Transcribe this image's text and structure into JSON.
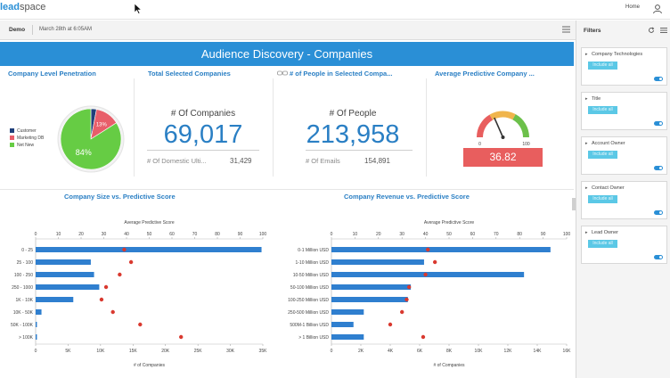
{
  "app": {
    "logo_prefix": "lead",
    "logo_suffix": "space",
    "home": "Home"
  },
  "dashboard": {
    "name": "Demo",
    "date": "March 28th at 6:05AM",
    "title": "Audience Discovery - Companies"
  },
  "kpis": {
    "penetration": {
      "title": "Company Level Penetration",
      "legend": [
        {
          "label": "Customer",
          "color": "#1f3f7a"
        },
        {
          "label": "Marketing DB",
          "color": "#e85e6a"
        },
        {
          "label": "Net New",
          "color": "#66cc44"
        }
      ],
      "slices": [
        {
          "label": "Customer",
          "value": 3,
          "color": "#1f3f7a",
          "text": ""
        },
        {
          "label": "Marketing DB",
          "value": 13,
          "color": "#e85e6a",
          "text": "13%"
        },
        {
          "label": "Net New",
          "value": 84,
          "color": "#66cc44",
          "text": "84%"
        }
      ]
    },
    "companies": {
      "title": "Total Selected Companies",
      "label": "# Of Companies",
      "value": "69,017",
      "sub_label": "# Of Domestic Ulti...",
      "sub_value": "31,429"
    },
    "people": {
      "title": "# of People in Selected Compa...",
      "label": "# Of People",
      "value": "213,958",
      "sub_label": "# Of Emails",
      "sub_value": "154,891"
    },
    "score": {
      "title": "Average Predictive Company ...",
      "min": "0",
      "max": "100",
      "value": "36.82",
      "value_num": 36.82
    }
  },
  "chart_data": [
    {
      "type": "bar",
      "title": "Company Size vs. Predictive Score",
      "top_axis_label": "Average Predictive Score",
      "top_ticks": [
        "0",
        "10",
        "20",
        "30",
        "40",
        "50",
        "60",
        "70",
        "80",
        "90",
        "100"
      ],
      "top_range": [
        0,
        100
      ],
      "xlabel": "# of Companies",
      "bottom_ticks": [
        "0",
        "5K",
        "10K",
        "15K",
        "20K",
        "25K",
        "30K",
        "35K"
      ],
      "xlim": [
        0,
        35000
      ],
      "categories": [
        "0 - 25",
        "25 - 100",
        "100 - 250",
        "250 - 1000",
        "1K - 10K",
        "10K - 50K",
        "50K - 100K",
        "> 100K"
      ],
      "series": [
        {
          "name": "# of Companies",
          "values": [
            34800,
            8500,
            9000,
            9800,
            5800,
            900,
            200,
            200
          ]
        },
        {
          "name": "Average Predictive Score",
          "values": [
            39,
            42,
            37,
            31,
            29,
            34,
            46,
            64
          ]
        }
      ]
    },
    {
      "type": "bar",
      "title": "Company Revenue vs. Predictive Score",
      "top_axis_label": "Average Predictive Score",
      "top_ticks": [
        "0",
        "10",
        "20",
        "30",
        "40",
        "50",
        "60",
        "70",
        "80",
        "90",
        "100"
      ],
      "top_range": [
        0,
        100
      ],
      "xlabel": "# of Companies",
      "bottom_ticks": [
        "0",
        "2K",
        "4K",
        "6K",
        "8K",
        "10K",
        "12K",
        "14K",
        "16K"
      ],
      "xlim": [
        0,
        16000
      ],
      "categories": [
        "0-1 Million USD",
        "1-10 Million USD",
        "10-50 Million USD",
        "50-100 Million USD",
        "100-250 Million USD",
        "250-500 Million USD",
        "500M-1 Billion USD",
        "> 1 Billion USD"
      ],
      "series": [
        {
          "name": "# of Companies",
          "values": [
            14900,
            6300,
            13100,
            5400,
            5200,
            2200,
            1500,
            2200
          ]
        },
        {
          "name": "Average Predictive Score",
          "values": [
            41,
            44,
            40,
            33,
            32,
            30,
            25,
            39
          ]
        }
      ]
    }
  ],
  "filters": {
    "title": "Filters",
    "cards": [
      {
        "title": "Company Technologies",
        "chip": "Include all"
      },
      {
        "title": "Title",
        "chip": "Include all"
      },
      {
        "title": "Account Owner",
        "chip": "Include all"
      },
      {
        "title": "Contact Owner",
        "chip": "Include all"
      },
      {
        "title": "Lead Owner",
        "chip": "Include all"
      }
    ]
  }
}
